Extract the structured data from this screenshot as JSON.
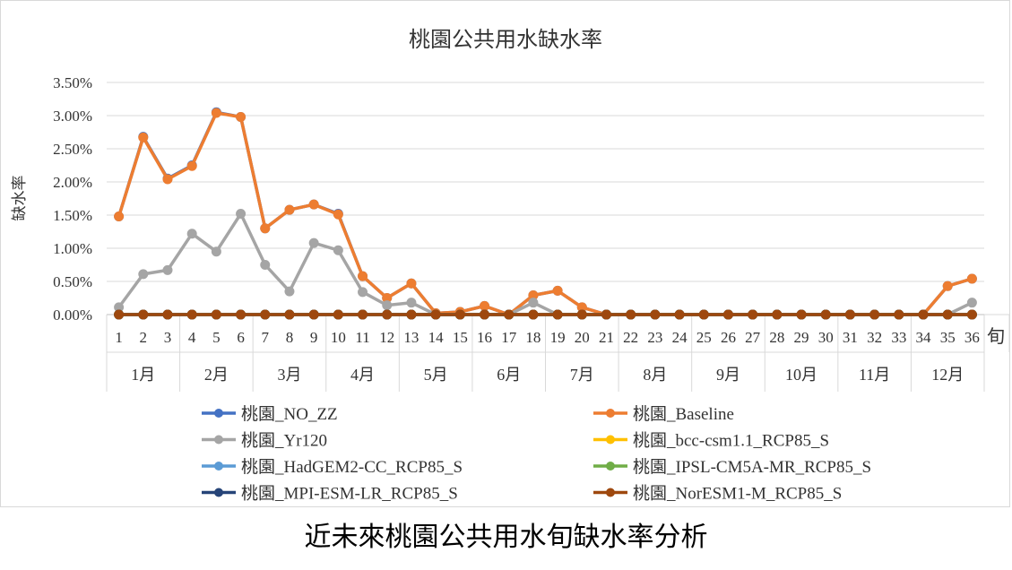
{
  "caption": "近未來桃園公共用水旬缺水率分析",
  "chart_data": {
    "type": "line",
    "title": "桃園公共用水缺水率",
    "ylabel": "缺水率",
    "xlabel": "旬",
    "ylim": [
      0,
      0.035
    ],
    "yticks": [
      "0.00%",
      "0.50%",
      "1.00%",
      "1.50%",
      "2.00%",
      "2.50%",
      "3.00%",
      "3.50%"
    ],
    "ytick_values": [
      0,
      0.005,
      0.01,
      0.015,
      0.02,
      0.025,
      0.03,
      0.035
    ],
    "grid": true,
    "legend_position": "bottom",
    "x": [
      "1",
      "2",
      "3",
      "4",
      "5",
      "6",
      "7",
      "8",
      "9",
      "10",
      "11",
      "12",
      "13",
      "14",
      "15",
      "16",
      "17",
      "18",
      "19",
      "20",
      "21",
      "22",
      "23",
      "24",
      "25",
      "26",
      "27",
      "28",
      "29",
      "30",
      "31",
      "32",
      "33",
      "34",
      "35",
      "36"
    ],
    "months": [
      "1月",
      "2月",
      "3月",
      "4月",
      "5月",
      "6月",
      "7月",
      "8月",
      "9月",
      "10月",
      "11月",
      "12月"
    ],
    "series": [
      {
        "name": "桃園_NO_ZZ",
        "color": "#4472c4",
        "values": [
          0.0148,
          0.0268,
          0.0205,
          0.0225,
          0.0305,
          0.0298,
          0.013,
          0.0158,
          0.0166,
          0.0152,
          0.0058,
          0.0025,
          0.0047,
          0.0002,
          0.0004,
          0.0013,
          0.0,
          0.0029,
          0.0036,
          0.0011,
          0.0,
          0.0,
          0.0,
          0.0,
          0.0,
          0.0,
          0.0,
          0.0,
          0.0,
          0.0,
          0.0,
          0.0,
          0.0,
          0.0,
          0.0043,
          0.0054
        ]
      },
      {
        "name": "桃園_Baseline",
        "color": "#ed7d31",
        "values": [
          0.0148,
          0.0267,
          0.0204,
          0.0224,
          0.0304,
          0.0298,
          0.013,
          0.0158,
          0.0166,
          0.0151,
          0.0058,
          0.0025,
          0.0047,
          0.0002,
          0.0004,
          0.0013,
          0.0,
          0.0029,
          0.0036,
          0.0011,
          0.0,
          0.0,
          0.0,
          0.0,
          0.0,
          0.0,
          0.0,
          0.0,
          0.0,
          0.0,
          0.0,
          0.0,
          0.0,
          0.0,
          0.0043,
          0.0054
        ]
      },
      {
        "name": "桃園_Yr120",
        "color": "#a5a5a5",
        "values": [
          0.0011,
          0.0061,
          0.0067,
          0.0122,
          0.0095,
          0.0152,
          0.0075,
          0.0035,
          0.0108,
          0.0097,
          0.0034,
          0.0014,
          0.0018,
          0.0,
          0.0,
          0.0,
          0.0,
          0.0018,
          0.0,
          0.0,
          0.0,
          0.0,
          0.0,
          0.0,
          0.0,
          0.0,
          0.0,
          0.0,
          0.0,
          0.0,
          0.0,
          0.0,
          0.0,
          0.0,
          0.0,
          0.0018
        ]
      },
      {
        "name": "桃園_bcc-csm1.1_RCP85_S",
        "color": "#ffc000",
        "values": [
          0,
          0,
          0,
          0,
          0,
          0,
          0,
          0,
          0,
          0,
          0,
          0,
          0,
          0,
          0,
          0,
          0,
          0,
          0,
          0,
          0,
          0,
          0,
          0,
          0,
          0,
          0,
          0,
          0,
          0,
          0,
          0,
          0,
          0,
          0,
          0
        ]
      },
      {
        "name": "桃園_HadGEM2-CC_RCP85_S",
        "color": "#5b9bd5",
        "values": [
          0,
          0,
          0,
          0,
          0,
          0,
          0,
          0,
          0,
          0,
          0,
          0,
          0,
          0,
          0,
          0,
          0,
          0,
          0,
          0,
          0,
          0,
          0,
          0,
          0,
          0,
          0,
          0,
          0,
          0,
          0,
          0,
          0,
          0,
          0,
          0
        ]
      },
      {
        "name": "桃園_IPSL-CM5A-MR_RCP85_S",
        "color": "#70ad47",
        "values": [
          0,
          0,
          0,
          0,
          0,
          0,
          0,
          0,
          0,
          0,
          0,
          0,
          0,
          0,
          0,
          0,
          0,
          0,
          0,
          0,
          0,
          0,
          0,
          0,
          0,
          0,
          0,
          0,
          0,
          0,
          0,
          0,
          0,
          0,
          0,
          0
        ]
      },
      {
        "name": "桃園_MPI-ESM-LR_RCP85_S",
        "color": "#264478",
        "values": [
          0,
          0,
          0,
          0,
          0,
          0,
          0,
          0,
          0,
          0,
          0,
          0,
          0,
          0,
          0,
          0,
          0,
          0,
          0,
          0,
          0,
          0,
          0,
          0,
          0,
          0,
          0,
          0,
          0,
          0,
          0,
          0,
          0,
          0,
          0,
          0
        ]
      },
      {
        "name": "桃園_NorESM1-M_RCP85_S",
        "color": "#9e480e",
        "values": [
          0,
          0,
          0,
          0,
          0,
          0,
          0,
          0,
          0,
          0,
          0,
          0,
          0,
          0,
          0,
          0,
          0,
          0,
          0,
          0,
          0,
          0,
          0,
          0,
          0,
          0,
          0,
          0,
          0,
          0,
          0,
          0,
          0,
          0,
          0,
          0
        ]
      }
    ]
  }
}
